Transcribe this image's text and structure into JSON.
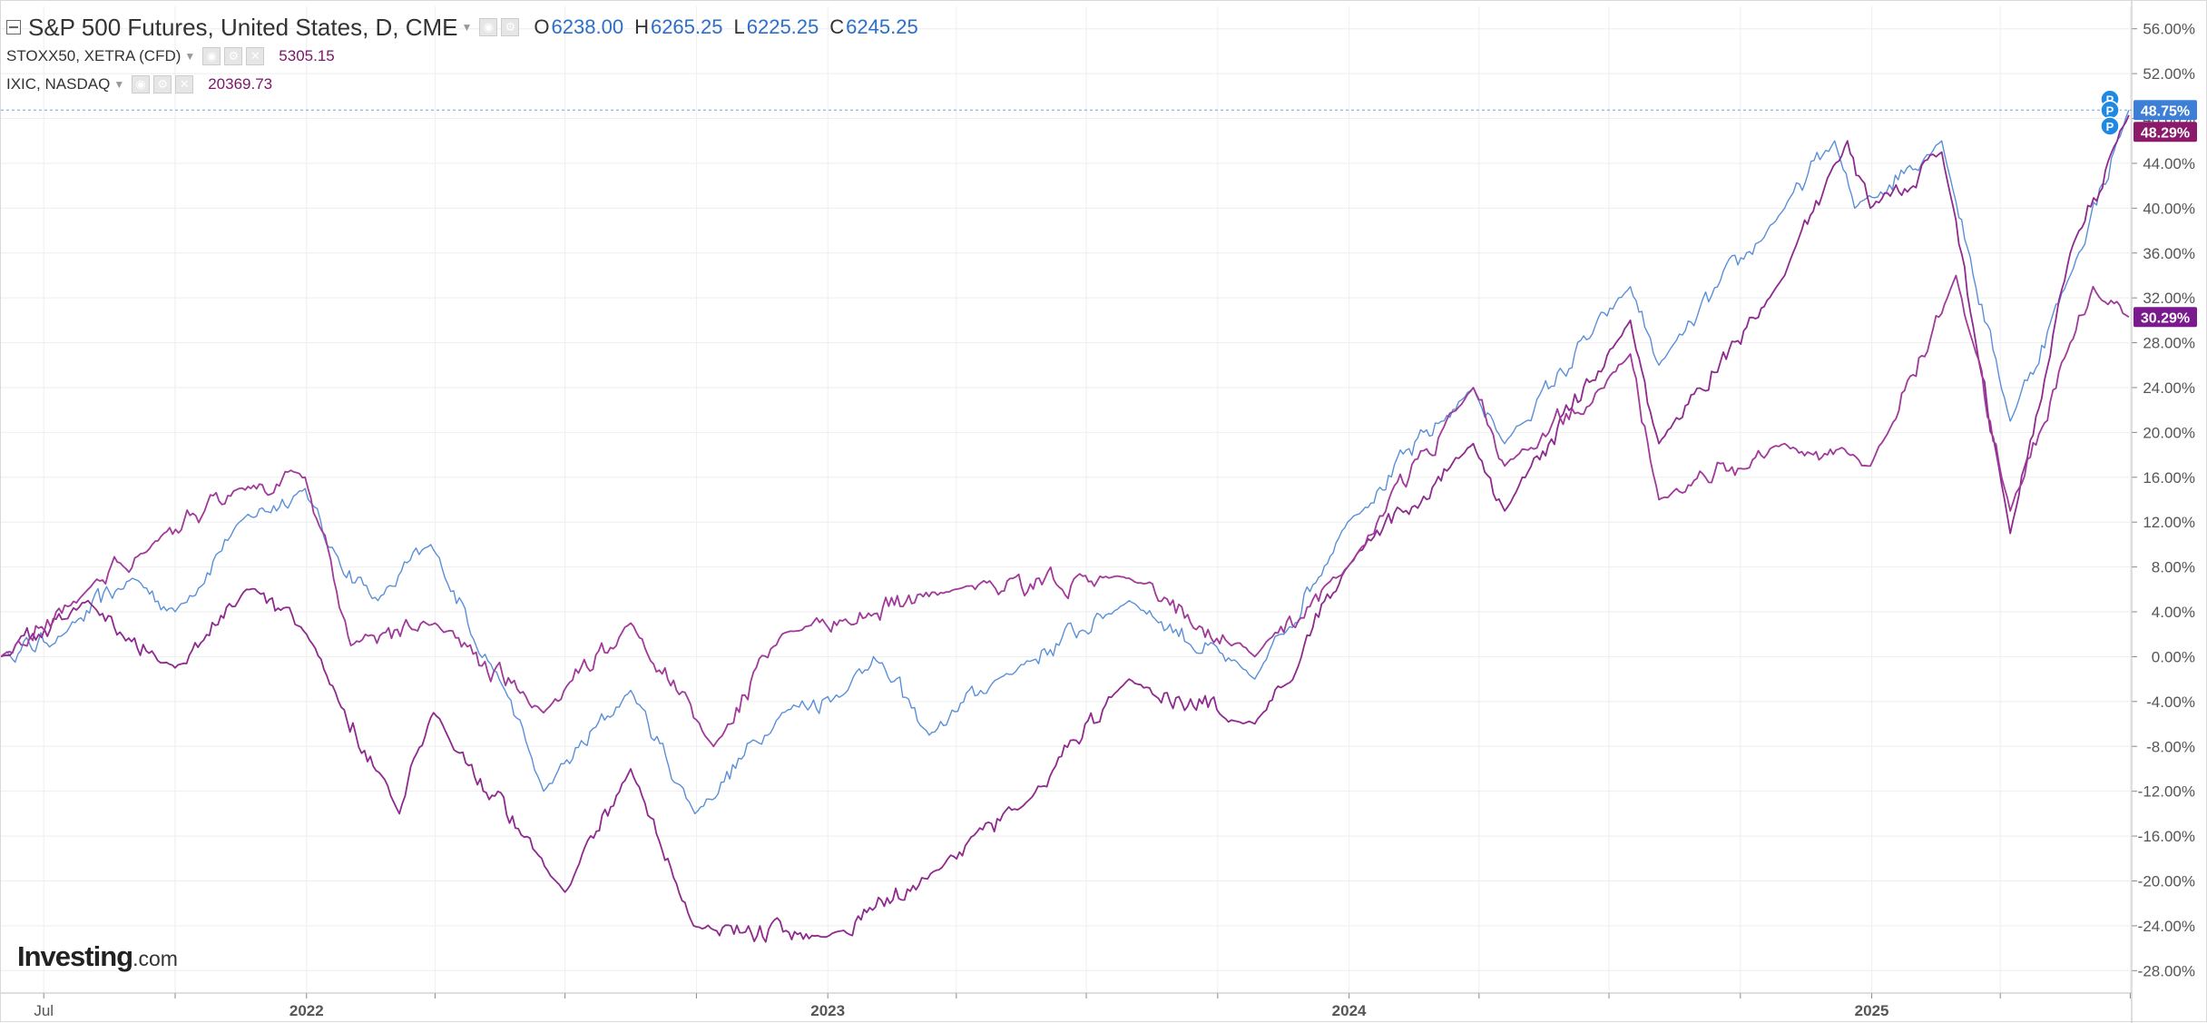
{
  "header": {
    "main_symbol": "S&P 500 Futures, United States, D, CME",
    "ohlc": [
      {
        "key": "O",
        "value": "6238.00"
      },
      {
        "key": "H",
        "value": "6265.25"
      },
      {
        "key": "L",
        "value": "6225.25"
      },
      {
        "key": "C",
        "value": "6245.25"
      }
    ],
    "compare": [
      {
        "symbol": "STOXX50, XETRA (CFD)",
        "price": "5305.15"
      },
      {
        "symbol": "IXIC, NASDAQ",
        "price": "20369.73"
      }
    ]
  },
  "logo": {
    "strong": "Investing",
    "suffix": ".com"
  },
  "colors": {
    "sp500": "#5a8fd8",
    "stoxx50": "#8e2a8e",
    "ixic": "#a03a9a",
    "grid": "#eeeeee",
    "axis": "#555555"
  },
  "icons": [
    "collapse-icon",
    "caret-down-icon",
    "eye-icon",
    "gear-icon",
    "close-icon",
    "price-marker-icon"
  ],
  "chart_data": {
    "type": "line",
    "x_unit": "date",
    "ylim": [
      -30,
      58
    ],
    "y_ticks": [
      "56.00%",
      "52.00%",
      "48.00%",
      "44.00%",
      "40.00%",
      "36.00%",
      "32.00%",
      "28.00%",
      "24.00%",
      "20.00%",
      "16.00%",
      "12.00%",
      "8.00%",
      "4.00%",
      "0.00%",
      "-4.00%",
      "-8.00%",
      "-12.00%",
      "-16.00%",
      "-20.00%",
      "-24.00%",
      "-28.00%"
    ],
    "x_ticks": [
      {
        "label": "Jul",
        "date": "2021-07-01"
      },
      {
        "label": "2022",
        "date": "2022-01-01"
      },
      {
        "label": "2023",
        "date": "2023-01-01"
      },
      {
        "label": "2024",
        "date": "2024-01-01"
      },
      {
        "label": "2025",
        "date": "2025-01-01"
      }
    ],
    "grid": true,
    "reference_line": 48.75,
    "last_value_labels": [
      "48.75%",
      "48.29%",
      "30.29%"
    ],
    "series": [
      {
        "color": "#5a8fd8",
        "points": [
          [
            "2021-06-01",
            0
          ],
          [
            "2021-07-15",
            2
          ],
          [
            "2021-09-01",
            7
          ],
          [
            "2021-10-01",
            4
          ],
          [
            "2021-11-15",
            12
          ],
          [
            "2021-12-31",
            15
          ],
          [
            "2022-01-15",
            10
          ],
          [
            "2022-02-20",
            5
          ],
          [
            "2022-03-29",
            10
          ],
          [
            "2022-05-20",
            -3
          ],
          [
            "2022-06-16",
            -12
          ],
          [
            "2022-08-16",
            -3
          ],
          [
            "2022-09-30",
            -14
          ],
          [
            "2022-11-30",
            -5
          ],
          [
            "2023-01-15",
            -3
          ],
          [
            "2023-02-02",
            0
          ],
          [
            "2023-03-13",
            -7
          ],
          [
            "2023-04-30",
            -2
          ],
          [
            "2023-07-31",
            5
          ],
          [
            "2023-10-27",
            -2
          ],
          [
            "2023-12-31",
            12
          ],
          [
            "2024-03-28",
            24
          ],
          [
            "2024-04-19",
            19
          ],
          [
            "2024-07-16",
            33
          ],
          [
            "2024-08-05",
            26
          ],
          [
            "2024-11-01",
            40
          ],
          [
            "2024-12-06",
            46
          ],
          [
            "2024-12-20",
            40
          ],
          [
            "2025-02-19",
            46
          ],
          [
            "2025-04-08",
            21
          ],
          [
            "2025-05-20",
            34
          ],
          [
            "2025-06-30",
            48.75
          ]
        ]
      },
      {
        "color": "#8e2a8e",
        "points": [
          [
            "2021-06-01",
            0
          ],
          [
            "2021-08-01",
            5
          ],
          [
            "2021-10-01",
            -1
          ],
          [
            "2021-11-20",
            6
          ],
          [
            "2022-01-01",
            2
          ],
          [
            "2022-03-07",
            -14
          ],
          [
            "2022-03-31",
            -5
          ],
          [
            "2022-07-01",
            -21
          ],
          [
            "2022-08-16",
            -10
          ],
          [
            "2022-09-29",
            -24
          ],
          [
            "2022-12-31",
            -25
          ],
          [
            "2023-03-20",
            -19
          ],
          [
            "2023-05-20",
            -13
          ],
          [
            "2023-07-31",
            -2
          ],
          [
            "2023-10-27",
            -6
          ],
          [
            "2023-12-31",
            8
          ],
          [
            "2024-03-28",
            19
          ],
          [
            "2024-04-19",
            13
          ],
          [
            "2024-07-16",
            30
          ],
          [
            "2024-08-05",
            19
          ],
          [
            "2024-11-01",
            34
          ],
          [
            "2024-12-15",
            46
          ],
          [
            "2024-12-31",
            40
          ],
          [
            "2025-02-19",
            45
          ],
          [
            "2025-04-08",
            11
          ],
          [
            "2025-05-20",
            36
          ],
          [
            "2025-06-30",
            48.29
          ]
        ]
      },
      {
        "color": "#a03a9a",
        "points": [
          [
            "2021-06-01",
            0
          ],
          [
            "2021-08-01",
            6
          ],
          [
            "2021-09-15",
            10
          ],
          [
            "2021-11-15",
            15
          ],
          [
            "2021-12-31",
            16
          ],
          [
            "2022-02-01",
            1
          ],
          [
            "2022-04-01",
            3
          ],
          [
            "2022-06-16",
            -5
          ],
          [
            "2022-08-16",
            3
          ],
          [
            "2022-10-13",
            -8
          ],
          [
            "2022-11-30",
            2
          ],
          [
            "2023-03-31",
            6
          ],
          [
            "2023-07-31",
            7
          ],
          [
            "2023-10-27",
            0
          ],
          [
            "2023-12-31",
            8
          ],
          [
            "2024-03-28",
            24
          ],
          [
            "2024-04-19",
            17
          ],
          [
            "2024-07-16",
            27
          ],
          [
            "2024-08-05",
            14
          ],
          [
            "2024-11-01",
            19
          ],
          [
            "2024-12-31",
            17
          ],
          [
            "2025-03-01",
            34
          ],
          [
            "2025-04-08",
            13
          ],
          [
            "2025-05-20",
            28
          ],
          [
            "2025-06-05",
            33
          ],
          [
            "2025-06-30",
            30.29
          ]
        ]
      }
    ]
  }
}
